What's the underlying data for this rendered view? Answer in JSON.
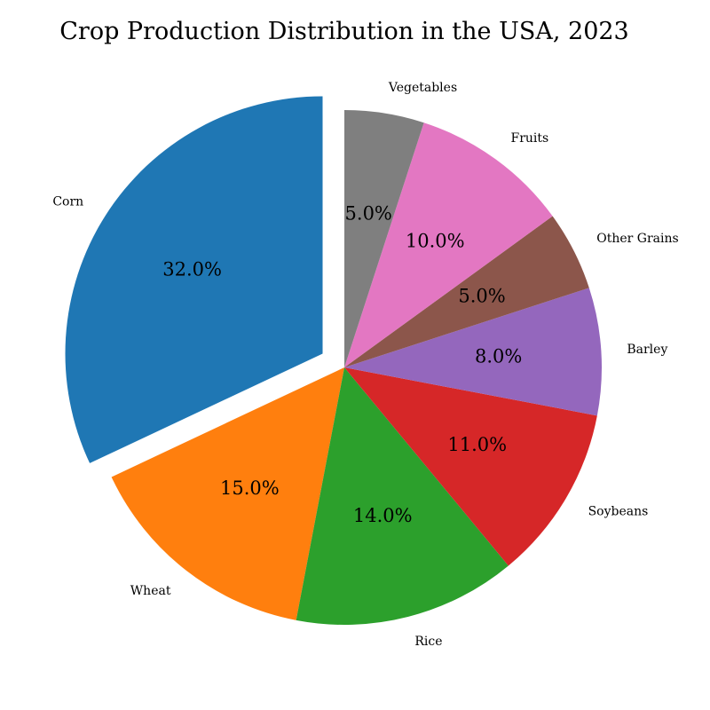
{
  "chart_data": {
    "type": "pie",
    "title": "Crop Production Distribution in the USA, 2023",
    "categories": [
      "Corn",
      "Wheat",
      "Rice",
      "Soybeans",
      "Barley",
      "Other Grains",
      "Fruits",
      "Vegetables"
    ],
    "values": [
      32,
      15,
      14,
      11,
      8,
      5,
      10,
      5
    ],
    "percent_labels": [
      "32.0%",
      "15.0%",
      "14.0%",
      "11.0%",
      "8.0%",
      "5.0%",
      "10.0%",
      "5.0%"
    ],
    "colors": [
      "#1f77b4",
      "#ff7f0e",
      "#2ca02c",
      "#d62728",
      "#9467bd",
      "#8c564b",
      "#e377c2",
      "#7f7f7f"
    ],
    "exploded": [
      "Corn"
    ],
    "start_angle_deg": 90,
    "direction": "counterclockwise"
  }
}
